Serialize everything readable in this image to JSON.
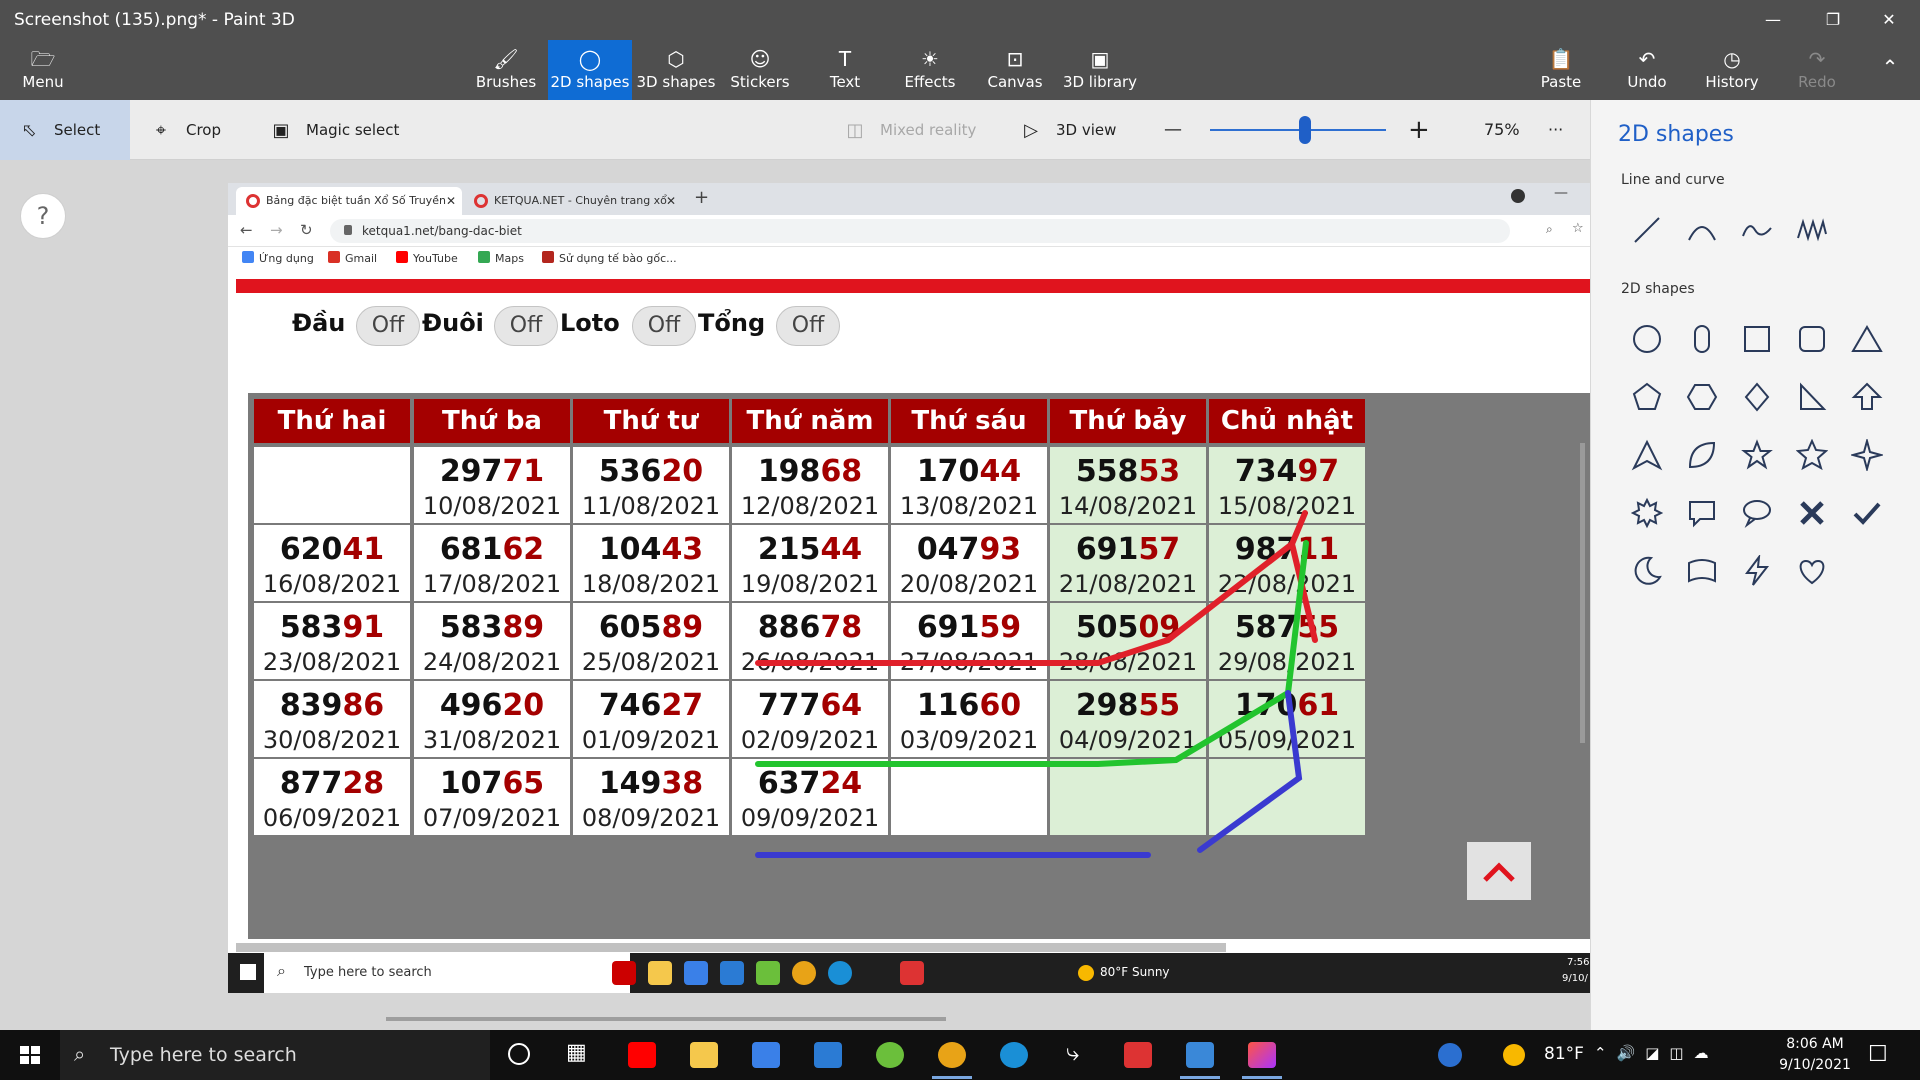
{
  "titlebar": {
    "title": "Screenshot (135).png* - Paint 3D"
  },
  "ribbon": {
    "menu": "Menu",
    "tools": [
      {
        "label": "Brushes",
        "icon": "brush-icon"
      },
      {
        "label": "2D shapes",
        "icon": "2d-shapes-icon"
      },
      {
        "label": "3D shapes",
        "icon": "3d-shapes-icon"
      },
      {
        "label": "Stickers",
        "icon": "stickers-icon"
      },
      {
        "label": "Text",
        "icon": "text-icon"
      },
      {
        "label": "Effects",
        "icon": "effects-icon"
      },
      {
        "label": "Canvas",
        "icon": "canvas-icon"
      },
      {
        "label": "3D library",
        "icon": "3d-library-icon"
      }
    ],
    "actions": [
      {
        "label": "Paste",
        "icon": "paste-icon"
      },
      {
        "label": "Undo",
        "icon": "undo-icon"
      },
      {
        "label": "History",
        "icon": "history-icon"
      },
      {
        "label": "Redo",
        "icon": "redo-icon"
      }
    ]
  },
  "toolbar": {
    "select": "Select",
    "crop": "Crop",
    "magic_select": "Magic select",
    "mixed_reality": "Mixed reality",
    "view_3d": "3D view",
    "zoom_out": "—",
    "zoom_in": "+",
    "zoom_value": 0.54,
    "zoom": "75%",
    "more": "···"
  },
  "help": {
    "label": "?"
  },
  "panel": {
    "title": "2D shapes",
    "line_section": "Line and curve",
    "shape_section": "2D shapes",
    "line_shapes": [
      "line-shape-icon",
      "curve-shape-icon",
      "polyline-shape-icon",
      "wave-shape-icon"
    ],
    "shapes": [
      "circle-shape-icon",
      "capsule-shape-icon",
      "square-shape-icon",
      "rounded-square-shape-icon",
      "triangle-shape-icon",
      "pentagon-shape-icon",
      "hexagon-shape-icon",
      "diamond-shape-icon",
      "right-triangle-shape-icon",
      "arrow-up-shape-icon",
      "tall-triangle-shape-icon",
      "leaf-shape-icon",
      "star-5-shape-icon",
      "star-5-alt-shape-icon",
      "star-4-shape-icon",
      "burst-shape-icon",
      "speech-bubble-shape-icon",
      "thought-bubble-shape-icon",
      "cross-shape-icon",
      "check-shape-icon",
      "moon-shape-icon",
      "banner-shape-icon",
      "lightning-shape-icon",
      "heart-shape-icon"
    ]
  },
  "browser": {
    "tabs": [
      {
        "title": "Bảng đặc biệt tuần Xổ Số Truyền"
      },
      {
        "title": "KETQUA.NET - Chuyên trang xổ"
      }
    ],
    "url": "ketqua1.net/bang-dac-biet",
    "bookmarks": [
      "Ứng dụng",
      "Gmail",
      "YouTube",
      "Maps",
      "Sử dụng tế bào gốc..."
    ]
  },
  "toggles": [
    {
      "label": "Đầu",
      "state": "Off"
    },
    {
      "label": "Đuôi",
      "state": "Off"
    },
    {
      "label": "Loto",
      "state": "Off"
    },
    {
      "label": "Tổng",
      "state": "Off"
    }
  ],
  "lottery": {
    "headers": [
      "Thứ hai",
      "Thứ ba",
      "Thứ tư",
      "Thứ năm",
      "Thứ sáu",
      "Thứ bảy",
      "Chủ nhật"
    ],
    "rows": [
      [
        null,
        {
          "head": "297",
          "tail": "71",
          "date": "10/08/2021"
        },
        {
          "head": "536",
          "tail": "20",
          "date": "11/08/2021"
        },
        {
          "head": "198",
          "tail": "68",
          "date": "12/08/2021"
        },
        {
          "head": "170",
          "tail": "44",
          "date": "13/08/2021"
        },
        {
          "head": "558",
          "tail": "53",
          "date": "14/08/2021"
        },
        {
          "head": "734",
          "tail": "97",
          "date": "15/08/2021"
        }
      ],
      [
        {
          "head": "620",
          "tail": "41",
          "date": "16/08/2021"
        },
        {
          "head": "681",
          "tail": "62",
          "date": "17/08/2021"
        },
        {
          "head": "104",
          "tail": "43",
          "date": "18/08/2021"
        },
        {
          "head": "215",
          "tail": "44",
          "date": "19/08/2021"
        },
        {
          "head": "047",
          "tail": "93",
          "date": "20/08/2021"
        },
        {
          "head": "691",
          "tail": "57",
          "date": "21/08/2021"
        },
        {
          "head": "987",
          "tail": "11",
          "date": "22/08/2021"
        }
      ],
      [
        {
          "head": "583",
          "tail": "91",
          "date": "23/08/2021"
        },
        {
          "head": "583",
          "tail": "89",
          "date": "24/08/2021"
        },
        {
          "head": "605",
          "tail": "89",
          "date": "25/08/2021"
        },
        {
          "head": "886",
          "tail": "78",
          "date": "26/08/2021"
        },
        {
          "head": "691",
          "tail": "59",
          "date": "27/08/2021"
        },
        {
          "head": "505",
          "tail": "09",
          "date": "28/08/2021"
        },
        {
          "head": "587",
          "tail": "55",
          "date": "29/08/2021"
        }
      ],
      [
        {
          "head": "839",
          "tail": "86",
          "date": "30/08/2021"
        },
        {
          "head": "496",
          "tail": "20",
          "date": "31/08/2021"
        },
        {
          "head": "746",
          "tail": "27",
          "date": "01/09/2021"
        },
        {
          "head": "777",
          "tail": "64",
          "date": "02/09/2021"
        },
        {
          "head": "116",
          "tail": "60",
          "date": "03/09/2021"
        },
        {
          "head": "298",
          "tail": "55",
          "date": "04/09/2021"
        },
        {
          "head": "170",
          "tail": "61",
          "date": "05/09/2021"
        }
      ],
      [
        {
          "head": "877",
          "tail": "28",
          "date": "06/09/2021"
        },
        {
          "head": "107",
          "tail": "65",
          "date": "07/09/2021"
        },
        {
          "head": "149",
          "tail": "38",
          "date": "08/09/2021"
        },
        {
          "head": "637",
          "tail": "24",
          "date": "09/09/2021"
        },
        null,
        null,
        null
      ]
    ],
    "scroll_up_icon": "chevron-up-icon"
  },
  "annotations": {
    "colors": {
      "red": "#e0202a",
      "green": "#22c42e",
      "blue": "#3a3ad0"
    }
  },
  "inner_taskbar": {
    "search": "Type here to search",
    "weather": "80°F  Sunny",
    "time": "7:56",
    "date": "9/10/"
  },
  "taskbar": {
    "search": "Type here to search",
    "weather": "81°F",
    "time": "8:06 AM",
    "date": "9/10/2021"
  }
}
